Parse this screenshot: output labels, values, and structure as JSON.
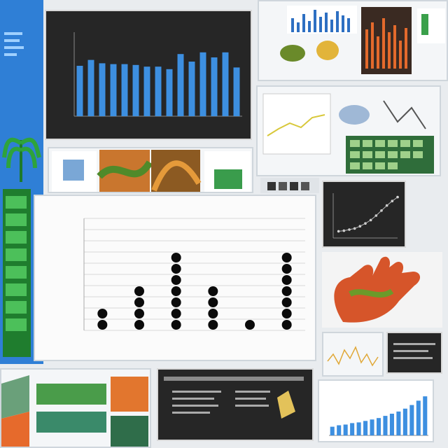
{
  "colors": {
    "bar_blue": "#3d8fe0",
    "dark_panel": "#262626",
    "dot": "#0b0b0b",
    "green": "#2e9c3c",
    "orange": "#e8692a"
  },
  "top_chart": {
    "chart_data": {
      "type": "bar",
      "values": [
        6,
        6.7,
        6.3,
        6.2,
        6.2,
        6.1,
        5.9,
        5.9,
        5.6,
        7.4,
        6.5,
        7.6,
        7.0,
        7.6,
        5.8
      ],
      "ylim": [
        0,
        10
      ],
      "grid": false
    }
  },
  "dot_chart": {
    "chart_data": {
      "type": "scatter",
      "categories": [
        "",
        "",
        "",
        "",
        "",
        ""
      ],
      "values": [
        2,
        4,
        7,
        4,
        1,
        7
      ],
      "ylim": [
        0,
        10
      ],
      "grid": true
    }
  },
  "right_line_chart": {
    "chart_data": {
      "type": "scatter",
      "x": [
        1,
        2,
        3,
        4,
        5,
        6,
        7,
        8,
        9,
        10,
        11,
        12
      ],
      "y": [
        1.2,
        1.3,
        1.5,
        1.7,
        2.1,
        2.6,
        3.2,
        4.0,
        4.9,
        5.8,
        6.6,
        7.3
      ],
      "grid": false
    }
  },
  "bottom_right_chart": {
    "chart_data": {
      "type": "bar",
      "values": [
        1.2,
        1.4,
        1.5,
        1.7,
        1.8,
        2.0,
        2.2,
        2.4,
        2.7,
        3.0,
        3.3,
        3.7,
        4.2,
        4.8,
        5.4
      ],
      "ylim": [
        0,
        6
      ]
    }
  },
  "mini_bars": {
    "chart_data": {
      "type": "bar",
      "values": [
        3,
        5,
        2,
        6,
        4,
        7,
        5,
        8,
        6,
        4
      ],
      "ylim": [
        0,
        10
      ]
    }
  }
}
